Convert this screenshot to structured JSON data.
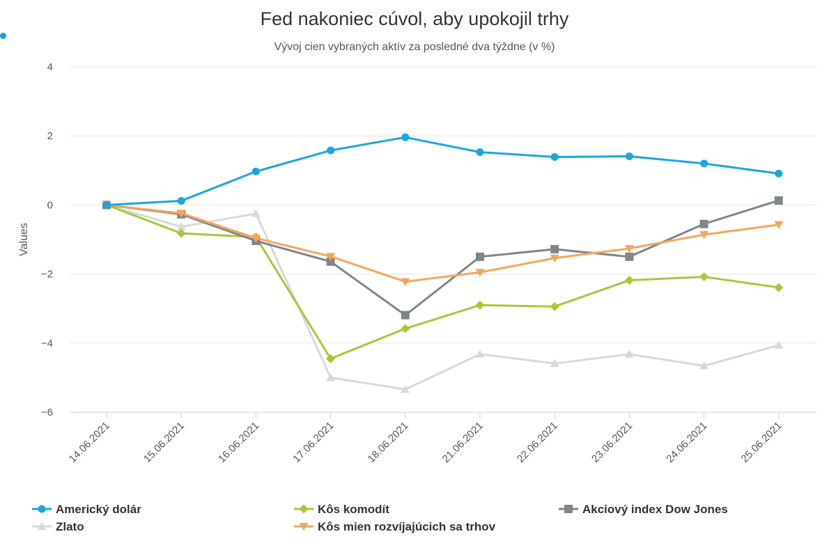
{
  "chart_data": {
    "type": "line",
    "title": "Fed nakoniec cúvol, aby upokojil trhy",
    "subtitle": "Vývoj cien vybraných aktív za posledné dva týždne (v %)",
    "ylabel": "Values",
    "ylim": [
      -6,
      4
    ],
    "yticks": [
      4,
      2,
      0,
      -2,
      -4,
      -6
    ],
    "ytick_labels": [
      "4",
      "2",
      "0",
      "−2",
      "−4",
      "−6"
    ],
    "categories": [
      "14.06.2021",
      "15.06.2021",
      "16.06.2021",
      "17.06.2021",
      "18.06.2021",
      "21.06.2021",
      "22.06.2021",
      "23.06.2021",
      "24.06.2021",
      "25.06.2021"
    ],
    "grid": true,
    "legend_position": "bottom",
    "series": [
      {
        "name": "Americký dolár",
        "color": "#1aa6e0",
        "marker": "circle",
        "values": [
          0,
          0.12,
          0.97,
          1.58,
          1.96,
          1.53,
          1.39,
          1.41,
          1.2,
          0.91
        ]
      },
      {
        "name": "Kôs komodít",
        "color": "#a8c739",
        "marker": "diamond",
        "values": [
          0,
          -0.82,
          -0.93,
          -4.45,
          -3.58,
          -2.9,
          -2.94,
          -2.18,
          -2.08,
          -2.39
        ]
      },
      {
        "name": "Akciový index Dow Jones",
        "color": "#808588",
        "marker": "square",
        "values": [
          0,
          -0.27,
          -1.04,
          -1.64,
          -3.19,
          -1.5,
          -1.28,
          -1.5,
          -0.55,
          0.13
        ]
      },
      {
        "name": "Zlato",
        "color": "#d6d9da",
        "marker": "triangle",
        "values": [
          0,
          -0.63,
          -0.25,
          -5.0,
          -5.34,
          -4.32,
          -4.59,
          -4.32,
          -4.66,
          -4.06
        ]
      },
      {
        "name": "Kôs mien rozvíjajúcich sa trhov",
        "color": "#f5a65b",
        "marker": "triangle-down",
        "values": [
          0,
          -0.24,
          -0.96,
          -1.49,
          -2.22,
          -1.95,
          -1.54,
          -1.26,
          -0.86,
          -0.57
        ]
      }
    ]
  }
}
